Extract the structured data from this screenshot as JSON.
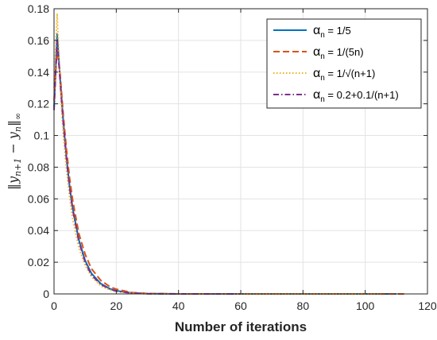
{
  "chart_data": {
    "type": "line",
    "xlabel": "Number of iterations",
    "ylabel_parts": {
      "open": "‖",
      "y1": "y",
      "sub1": "n+1",
      "minus": " − ",
      "y2": "y",
      "sub2": "n",
      "close": "‖",
      "sub3": "∞"
    },
    "xlim": [
      0,
      120
    ],
    "ylim": [
      0,
      0.18
    ],
    "xticks": [
      "0",
      "20",
      "40",
      "60",
      "80",
      "100",
      "120"
    ],
    "yticks": [
      "0",
      "0.02",
      "0.04",
      "0.06",
      "0.08",
      "0.1",
      "0.12",
      "0.14",
      "0.16",
      "0.18"
    ],
    "grid": true,
    "legend_position": "top-right",
    "series": [
      {
        "name_parts": {
          "sym": "α",
          "sub": "n",
          "rest": " = 1/5"
        },
        "color": "#0072BD",
        "dash": "solid",
        "x": [
          0,
          1,
          2,
          3,
          4,
          5,
          6,
          8,
          10,
          12,
          15,
          18,
          20,
          25,
          30,
          40,
          60,
          80,
          100,
          110
        ],
        "y": [
          0.118,
          0.164,
          0.135,
          0.108,
          0.086,
          0.068,
          0.054,
          0.034,
          0.021,
          0.013,
          0.0065,
          0.0032,
          0.002,
          0.0006,
          0.0002,
          0,
          0,
          0,
          0,
          0
        ]
      },
      {
        "name_parts": {
          "sym": "α",
          "sub": "n",
          "rest": " = 1/(5n)"
        },
        "color": "#D95319",
        "dash": "dashed",
        "x": [
          0,
          1,
          2,
          3,
          4,
          5,
          6,
          8,
          10,
          12,
          15,
          18,
          20,
          25,
          30,
          40,
          60,
          80,
          100,
          113
        ],
        "y": [
          0.122,
          0.155,
          0.138,
          0.112,
          0.091,
          0.073,
          0.059,
          0.038,
          0.025,
          0.016,
          0.0085,
          0.0045,
          0.003,
          0.0009,
          0.0003,
          0,
          0,
          0,
          0,
          0
        ]
      },
      {
        "name_parts": {
          "sym": "α",
          "sub": "n",
          "rest": " = 1/√(n+1)"
        },
        "color": "#EDB120",
        "dash": "dotted",
        "x": [
          0,
          1,
          2,
          3,
          4,
          5,
          6,
          8,
          10,
          12,
          15,
          18,
          20,
          25,
          30,
          40,
          60,
          80,
          100,
          105
        ],
        "y": [
          0.13,
          0.177,
          0.13,
          0.1,
          0.078,
          0.061,
          0.047,
          0.029,
          0.018,
          0.011,
          0.005,
          0.0024,
          0.0015,
          0.0004,
          0.0001,
          0,
          0,
          0,
          0,
          0
        ]
      },
      {
        "name_parts": {
          "sym": "α",
          "sub": "n",
          "rest": " = 0.2+0.1/(n+1)"
        },
        "color": "#7E2F8E",
        "dash": "dashdot",
        "x": [
          0,
          1,
          2,
          3,
          4,
          5,
          6,
          8,
          10,
          12,
          15,
          18,
          20,
          25,
          30,
          40,
          60
        ],
        "y": [
          0.116,
          0.16,
          0.134,
          0.107,
          0.085,
          0.067,
          0.053,
          0.033,
          0.02,
          0.012,
          0.006,
          0.003,
          0.0018,
          0.0005,
          0.0001,
          0,
          0
        ]
      }
    ]
  }
}
